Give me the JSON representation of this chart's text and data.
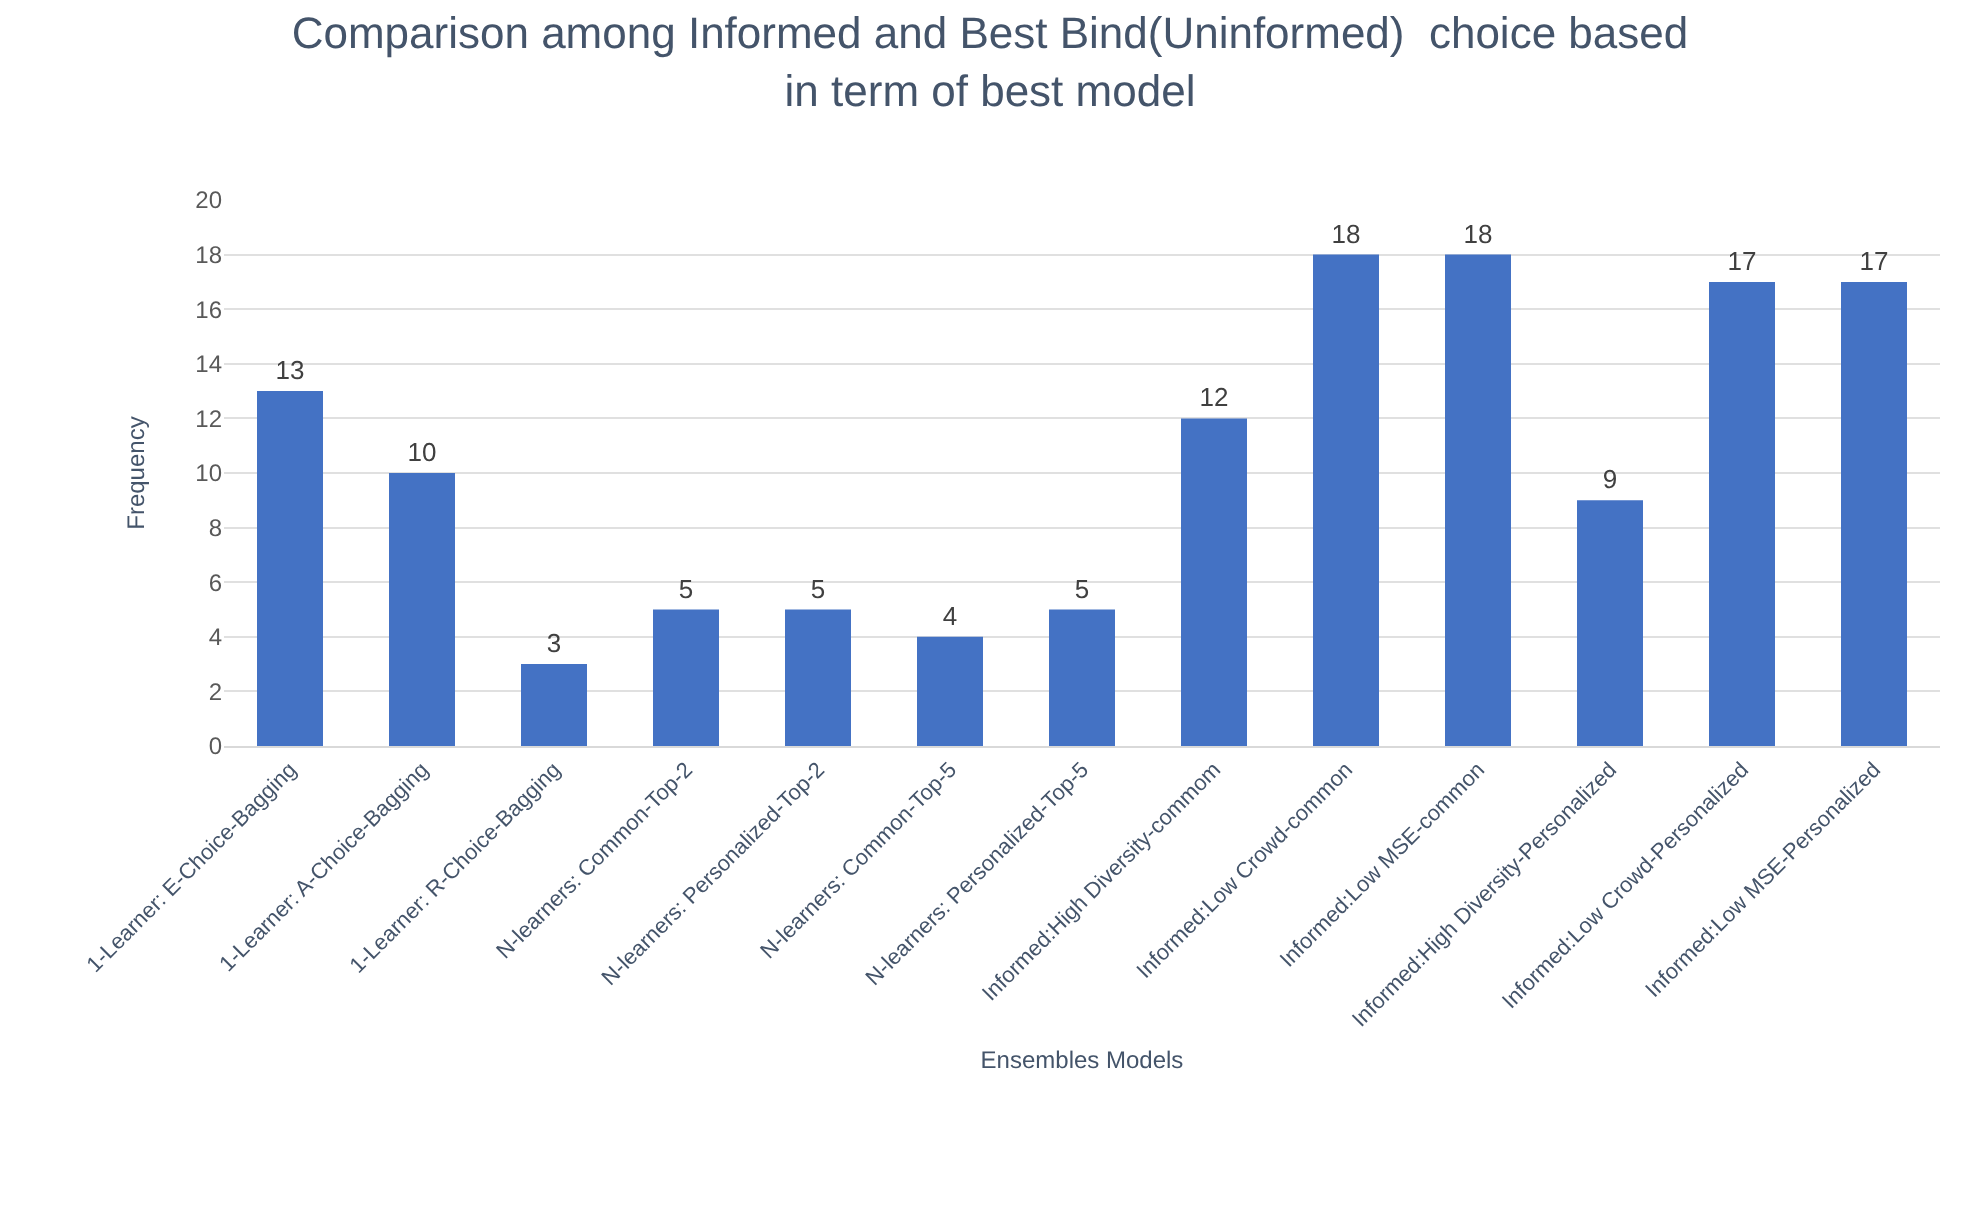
{
  "chart_data": {
    "type": "bar",
    "title": "Comparison among Informed and Best Bind(Uninformed)  choice based\nin term of best model",
    "xlabel": "Ensembles Models",
    "ylabel": "Frequency",
    "categories": [
      "1-Learner: E-Choice-Bagging",
      "1-Learner: A-Choice-Bagging",
      "1-Learner: R-Choice-Bagging",
      "N-learners: Common-Top-2",
      "N-learners: Personalized-Top-2",
      "N-learners: Common-Top-5",
      "N-learners: Personalized-Top-5",
      "Informed:High Diversity-commom",
      "Informed:Low Crowd-common",
      "Informed:Low MSE-common",
      "Informed:High Diversity-Personalized",
      "Informed:Low Crowd-Personalized",
      "Informed:Low MSE-Personalized"
    ],
    "values": [
      13,
      10,
      3,
      5,
      5,
      4,
      5,
      12,
      18,
      18,
      9,
      17,
      17
    ],
    "color": "#4472c4",
    "ylim": [
      0,
      20
    ],
    "yticks": [
      0,
      2,
      4,
      6,
      8,
      10,
      12,
      14,
      16,
      18,
      20
    ],
    "grid": "y",
    "data_labels": true
  }
}
